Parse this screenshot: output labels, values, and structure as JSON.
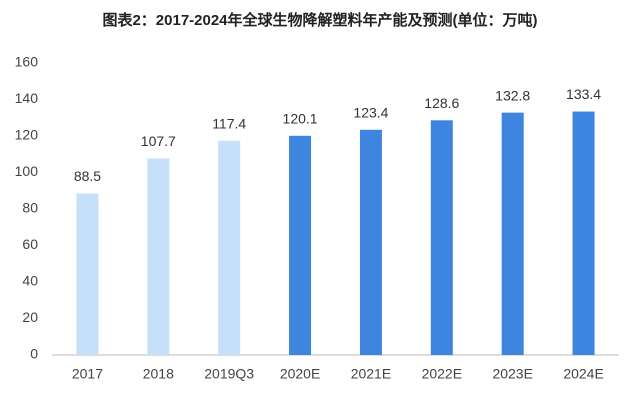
{
  "chart_data": {
    "type": "bar",
    "title": "图表2：2017-2024年全球生物降解塑料年产能及预测(单位：万吨)",
    "categories": [
      "2017",
      "2018",
      "2019Q3",
      "2020E",
      "2021E",
      "2022E",
      "2023E",
      "2024E"
    ],
    "values": [
      88.5,
      107.7,
      117.4,
      120.1,
      123.4,
      128.6,
      132.8,
      133.4
    ],
    "colors": [
      "#c6e0f9",
      "#c6e0f9",
      "#c6e0f9",
      "#3d85de",
      "#3d85de",
      "#3d85de",
      "#3d85de",
      "#3d85de"
    ],
    "ylim": [
      0,
      160
    ],
    "yticks": [
      0,
      20,
      40,
      60,
      80,
      100,
      120,
      140,
      160
    ],
    "grid": false
  }
}
